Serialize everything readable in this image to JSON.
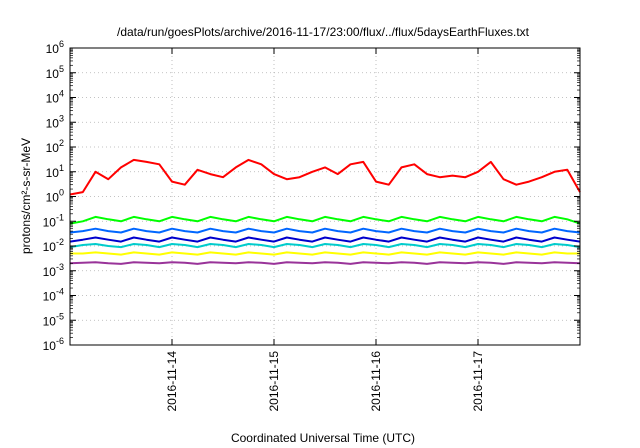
{
  "chart_data": {
    "type": "line",
    "title": "/data/run/goesPlots/archive/2016-11-17/23:00/flux/../flux/5daysEarthFluxes.txt",
    "xlabel": "Coordinated Universal Time (UTC)",
    "ylabel": "protons/cm²-s-sr-MeV",
    "yscale": "log",
    "ylim": [
      1e-06,
      1000000
    ],
    "xlim": [
      "2016-11-13 00:00",
      "2016-11-18 00:00"
    ],
    "grid": true,
    "legend": "none",
    "x_ticks": [
      "2016-11-14",
      "2016-11-15",
      "2016-11-16",
      "2016-11-17"
    ],
    "y_ticks": [
      {
        "base": "10",
        "exp": "-6",
        "value": 1e-06
      },
      {
        "base": "10",
        "exp": "-5",
        "value": 1e-05
      },
      {
        "base": "10",
        "exp": "-4",
        "value": 0.0001
      },
      {
        "base": "10",
        "exp": "-3",
        "value": 0.001
      },
      {
        "base": "10",
        "exp": "-2",
        "value": 0.01
      },
      {
        "base": "10",
        "exp": "-1",
        "value": 0.1
      },
      {
        "base": "10",
        "exp": "0",
        "value": 1
      },
      {
        "base": "10",
        "exp": "1",
        "value": 10
      },
      {
        "base": "10",
        "exp": "2",
        "value": 100
      },
      {
        "base": "10",
        "exp": "3",
        "value": 1000
      },
      {
        "base": "10",
        "exp": "4",
        "value": 10000
      },
      {
        "base": "10",
        "exp": "5",
        "value": 100000
      },
      {
        "base": "10",
        "exp": "6",
        "value": 1000000
      }
    ],
    "x": [
      "2016-11-13 00:00",
      "2016-11-13 03:00",
      "2016-11-13 06:00",
      "2016-11-13 09:00",
      "2016-11-13 12:00",
      "2016-11-13 15:00",
      "2016-11-13 18:00",
      "2016-11-13 21:00",
      "2016-11-14 00:00",
      "2016-11-14 03:00",
      "2016-11-14 06:00",
      "2016-11-14 09:00",
      "2016-11-14 12:00",
      "2016-11-14 15:00",
      "2016-11-14 18:00",
      "2016-11-14 21:00",
      "2016-11-15 00:00",
      "2016-11-15 03:00",
      "2016-11-15 06:00",
      "2016-11-15 09:00",
      "2016-11-15 12:00",
      "2016-11-15 15:00",
      "2016-11-15 18:00",
      "2016-11-15 21:00",
      "2016-11-16 00:00",
      "2016-11-16 03:00",
      "2016-11-16 06:00",
      "2016-11-16 09:00",
      "2016-11-16 12:00",
      "2016-11-16 15:00",
      "2016-11-16 18:00",
      "2016-11-16 21:00",
      "2016-11-17 00:00",
      "2016-11-17 03:00",
      "2016-11-17 06:00",
      "2016-11-17 09:00",
      "2016-11-17 12:00",
      "2016-11-17 15:00",
      "2016-11-17 18:00",
      "2016-11-17 21:00",
      "2016-11-18 00:00"
    ],
    "series": [
      {
        "color": "#ff0000",
        "values": [
          1.2,
          1.5,
          10,
          5,
          15,
          30,
          25,
          20,
          4,
          3,
          12,
          8,
          6,
          15,
          30,
          20,
          8,
          5,
          6,
          10,
          15,
          8,
          20,
          25,
          4,
          3,
          15,
          20,
          8,
          6,
          7,
          6,
          10,
          25,
          5,
          3,
          4,
          6,
          10,
          12,
          1.5
        ]
      },
      {
        "color": "#00ff00",
        "values": [
          0.08,
          0.1,
          0.15,
          0.12,
          0.1,
          0.15,
          0.12,
          0.1,
          0.15,
          0.12,
          0.1,
          0.15,
          0.12,
          0.1,
          0.15,
          0.12,
          0.1,
          0.15,
          0.12,
          0.1,
          0.15,
          0.12,
          0.1,
          0.15,
          0.12,
          0.1,
          0.15,
          0.12,
          0.1,
          0.15,
          0.12,
          0.1,
          0.15,
          0.12,
          0.1,
          0.15,
          0.12,
          0.1,
          0.15,
          0.12,
          0.08
        ]
      },
      {
        "color": "#0066ff",
        "values": [
          0.035,
          0.04,
          0.05,
          0.04,
          0.035,
          0.05,
          0.04,
          0.035,
          0.05,
          0.04,
          0.035,
          0.05,
          0.04,
          0.035,
          0.05,
          0.04,
          0.035,
          0.05,
          0.04,
          0.035,
          0.05,
          0.04,
          0.035,
          0.05,
          0.04,
          0.035,
          0.05,
          0.04,
          0.035,
          0.05,
          0.04,
          0.035,
          0.05,
          0.04,
          0.035,
          0.05,
          0.04,
          0.035,
          0.05,
          0.04,
          0.035
        ]
      },
      {
        "color": "#0000cc",
        "values": [
          0.015,
          0.018,
          0.022,
          0.018,
          0.015,
          0.022,
          0.018,
          0.015,
          0.022,
          0.018,
          0.015,
          0.022,
          0.018,
          0.015,
          0.022,
          0.018,
          0.015,
          0.022,
          0.018,
          0.015,
          0.022,
          0.018,
          0.015,
          0.022,
          0.018,
          0.015,
          0.022,
          0.018,
          0.015,
          0.022,
          0.018,
          0.015,
          0.022,
          0.018,
          0.015,
          0.022,
          0.018,
          0.015,
          0.022,
          0.018,
          0.015
        ]
      },
      {
        "color": "#00cccc",
        "values": [
          0.009,
          0.011,
          0.012,
          0.01,
          0.009,
          0.012,
          0.011,
          0.009,
          0.012,
          0.011,
          0.009,
          0.012,
          0.011,
          0.009,
          0.012,
          0.011,
          0.009,
          0.012,
          0.011,
          0.009,
          0.012,
          0.011,
          0.009,
          0.012,
          0.011,
          0.009,
          0.012,
          0.011,
          0.009,
          0.012,
          0.011,
          0.009,
          0.012,
          0.011,
          0.009,
          0.012,
          0.011,
          0.009,
          0.012,
          0.011,
          0.009
        ]
      },
      {
        "color": "#ffff00",
        "values": [
          0.005,
          0.005,
          0.0055,
          0.005,
          0.0045,
          0.0055,
          0.005,
          0.0045,
          0.0055,
          0.005,
          0.0045,
          0.0055,
          0.005,
          0.0045,
          0.0055,
          0.005,
          0.0045,
          0.0055,
          0.005,
          0.0045,
          0.0055,
          0.005,
          0.0045,
          0.0055,
          0.005,
          0.0045,
          0.0055,
          0.005,
          0.0045,
          0.0055,
          0.005,
          0.0045,
          0.0055,
          0.005,
          0.0045,
          0.0055,
          0.005,
          0.0045,
          0.0055,
          0.005,
          0.005
        ]
      },
      {
        "color": "#993399",
        "values": [
          0.002,
          0.0021,
          0.0022,
          0.002,
          0.0019,
          0.0022,
          0.0021,
          0.002,
          0.0022,
          0.0021,
          0.0019,
          0.0022,
          0.0021,
          0.002,
          0.0022,
          0.0021,
          0.0019,
          0.0022,
          0.0021,
          0.002,
          0.0022,
          0.0021,
          0.0019,
          0.0022,
          0.0021,
          0.002,
          0.0022,
          0.0021,
          0.0019,
          0.0022,
          0.0021,
          0.002,
          0.0022,
          0.0021,
          0.0019,
          0.0022,
          0.0021,
          0.002,
          0.0022,
          0.0021,
          0.002
        ]
      }
    ]
  }
}
